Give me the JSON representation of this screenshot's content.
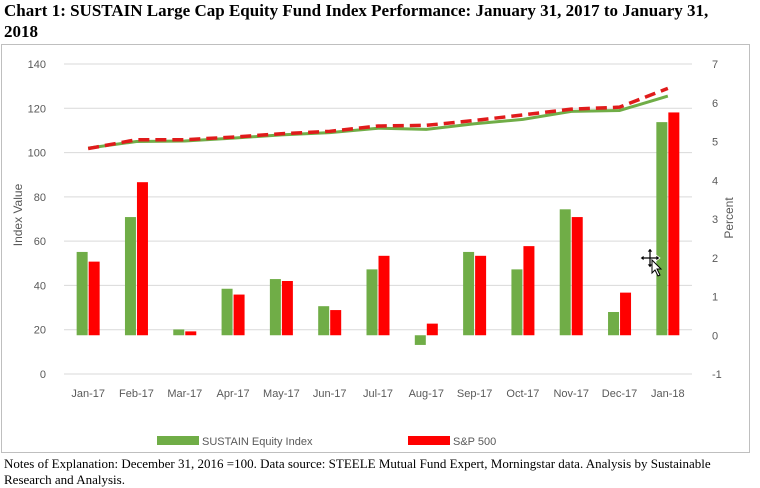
{
  "title": "Chart 1:  SUSTAIN Large Cap Equity Fund Index Performance:  January 31, 2017 to January 31, 2018",
  "notes": "Notes of Explanation:  December 31, 2016 =100.  Data source:  STEELE Mutual Fund Expert, Morningstar data. Analysis by Sustainable Research and Analysis.",
  "colors": {
    "sustain": "#70ad47",
    "sp500": "#ff0000",
    "sp500_line": "#e01b1b",
    "grid": "#d9d9d9",
    "axis_text": "#595959"
  },
  "chart_data": {
    "type": "bar",
    "categories": [
      "Jan-17",
      "Feb-17",
      "Mar-17",
      "Apr-17",
      "May-17",
      "Jun-17",
      "Jul-17",
      "Aug-17",
      "Sep-17",
      "Oct-17",
      "Nov-17",
      "Dec-17",
      "Jan-18"
    ],
    "ylabel": "Index Value",
    "y2label": "Percent",
    "ylim": [
      0,
      140
    ],
    "yticks": [
      "0",
      "20",
      "40",
      "60",
      "80",
      "100",
      "120",
      "140"
    ],
    "y2lim": [
      -1,
      7
    ],
    "y2ticks": [
      "-1",
      "0",
      "1",
      "2",
      "3",
      "4",
      "5",
      "6",
      "7"
    ],
    "legend_position": "bottom",
    "grid": true,
    "series": [
      {
        "name": "SUSTAIN Equity Index",
        "kind": "bar",
        "axis": "right",
        "values": [
          2.15,
          3.05,
          0.15,
          1.2,
          1.45,
          0.75,
          1.7,
          -0.25,
          2.15,
          1.7,
          3.25,
          0.6,
          5.5
        ]
      },
      {
        "name": "S&P 500",
        "kind": "bar",
        "axis": "right",
        "values": [
          1.9,
          3.95,
          0.1,
          1.05,
          1.4,
          0.65,
          2.05,
          0.3,
          2.05,
          2.3,
          3.05,
          1.1,
          5.75
        ]
      },
      {
        "name": "SUSTAIN Equity Index",
        "kind": "line",
        "axis": "left",
        "values": [
          102,
          105,
          105.2,
          106.5,
          108,
          109,
          111,
          110.5,
          113,
          115,
          118.6,
          119,
          125.5
        ]
      },
      {
        "name": "S&P 500",
        "kind": "line",
        "axis": "left",
        "values": [
          101.8,
          105.8,
          105.8,
          107,
          108.5,
          109.6,
          112,
          112.3,
          114.5,
          117,
          119.6,
          120.5,
          129
        ]
      }
    ]
  }
}
